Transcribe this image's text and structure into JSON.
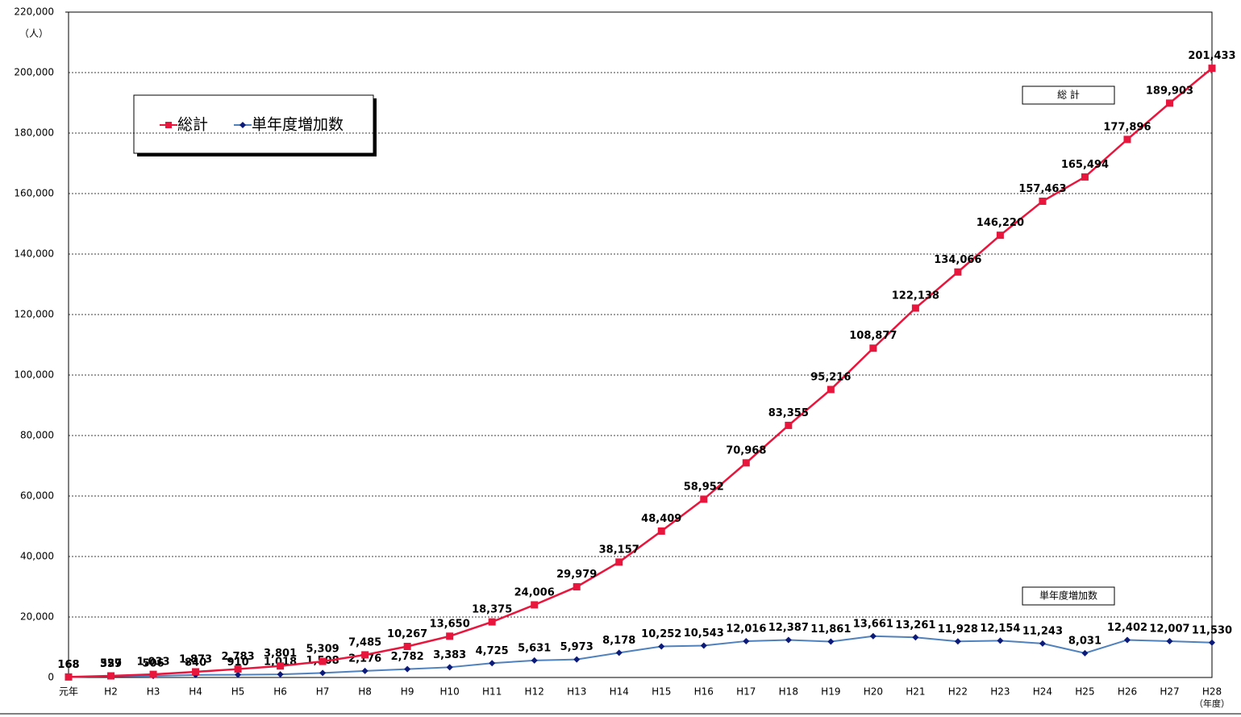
{
  "chart_data": {
    "type": "line",
    "y_unit": "（人）",
    "x_unit": "（年度）",
    "categories": [
      "元年",
      "H2",
      "H3",
      "H4",
      "H5",
      "H6",
      "H7",
      "H8",
      "H9",
      "H10",
      "H11",
      "H12",
      "H13",
      "H14",
      "H15",
      "H16",
      "H17",
      "H18",
      "H19",
      "H20",
      "H21",
      "H22",
      "H23",
      "H24",
      "H25",
      "H26",
      "H27",
      "H28"
    ],
    "series": [
      {
        "name": "総計",
        "color": "#e8153c",
        "marker": "square",
        "values": [
          168,
          527,
          1033,
          1873,
          2783,
          3801,
          5309,
          7485,
          10267,
          13650,
          18375,
          24006,
          29979,
          38157,
          48409,
          58952,
          70968,
          83355,
          95216,
          108877,
          122138,
          134066,
          146220,
          157463,
          165494,
          177896,
          189903,
          201433
        ],
        "value_labels": [
          "168",
          "527",
          "1,033",
          "1,873",
          "2,783",
          "3,801",
          "5,309",
          "7,485",
          "10,267",
          "13,650",
          "18,375",
          "24,006",
          "29,979",
          "38,157",
          "48,409",
          "58,952",
          "70,968",
          "83,355",
          "95,216",
          "108,877",
          "122,138",
          "134,066",
          "146,220",
          "157,463",
          "165,494",
          "177,896",
          "189,903",
          "201,433"
        ]
      },
      {
        "name": "単年度増加数",
        "color": "#4f81bd",
        "marker_color": "#0c1a7a",
        "marker": "diamond",
        "values": [
          168,
          359,
          506,
          840,
          910,
          1018,
          1508,
          2176,
          2782,
          3383,
          4725,
          5631,
          5973,
          8178,
          10252,
          10543,
          12016,
          12387,
          11861,
          13661,
          13261,
          11928,
          12154,
          11243,
          8031,
          12402,
          12007,
          11530
        ],
        "value_labels": [
          "168",
          "359",
          "506",
          "840",
          "910",
          "1,018",
          "1,508",
          "2,176",
          "2,782",
          "3,383",
          "4,725",
          "5,631",
          "5,973",
          "8,178",
          "10,252",
          "10,543",
          "12,016",
          "12,387",
          "11,861",
          "13,661",
          "13,261",
          "11,928",
          "12,154",
          "11,243",
          "8,031",
          "12,402",
          "12,007",
          "11,530"
        ]
      }
    ],
    "annotations": [
      "総 計",
      "単年度増加数"
    ],
    "ylim": [
      0,
      220000
    ],
    "yticks": [
      0,
      {
        "value": 20000,
        "label": "20,000"
      },
      {
        "value": 40000,
        "label": "40,000"
      },
      {
        "value": 60000,
        "label": "60,000"
      },
      {
        "value": 80000,
        "label": "80,000"
      },
      {
        "value": 100000,
        "label": "100,000"
      },
      {
        "value": 120000,
        "label": "120,000"
      },
      {
        "value": 140000,
        "label": "140,000"
      },
      {
        "value": 160000,
        "label": "160,000"
      },
      {
        "value": 180000,
        "label": "180,000"
      },
      {
        "value": 200000,
        "label": "200,000"
      },
      {
        "value": 220000,
        "label": "220,000"
      }
    ],
    "grid": true,
    "legend": "upper left"
  }
}
